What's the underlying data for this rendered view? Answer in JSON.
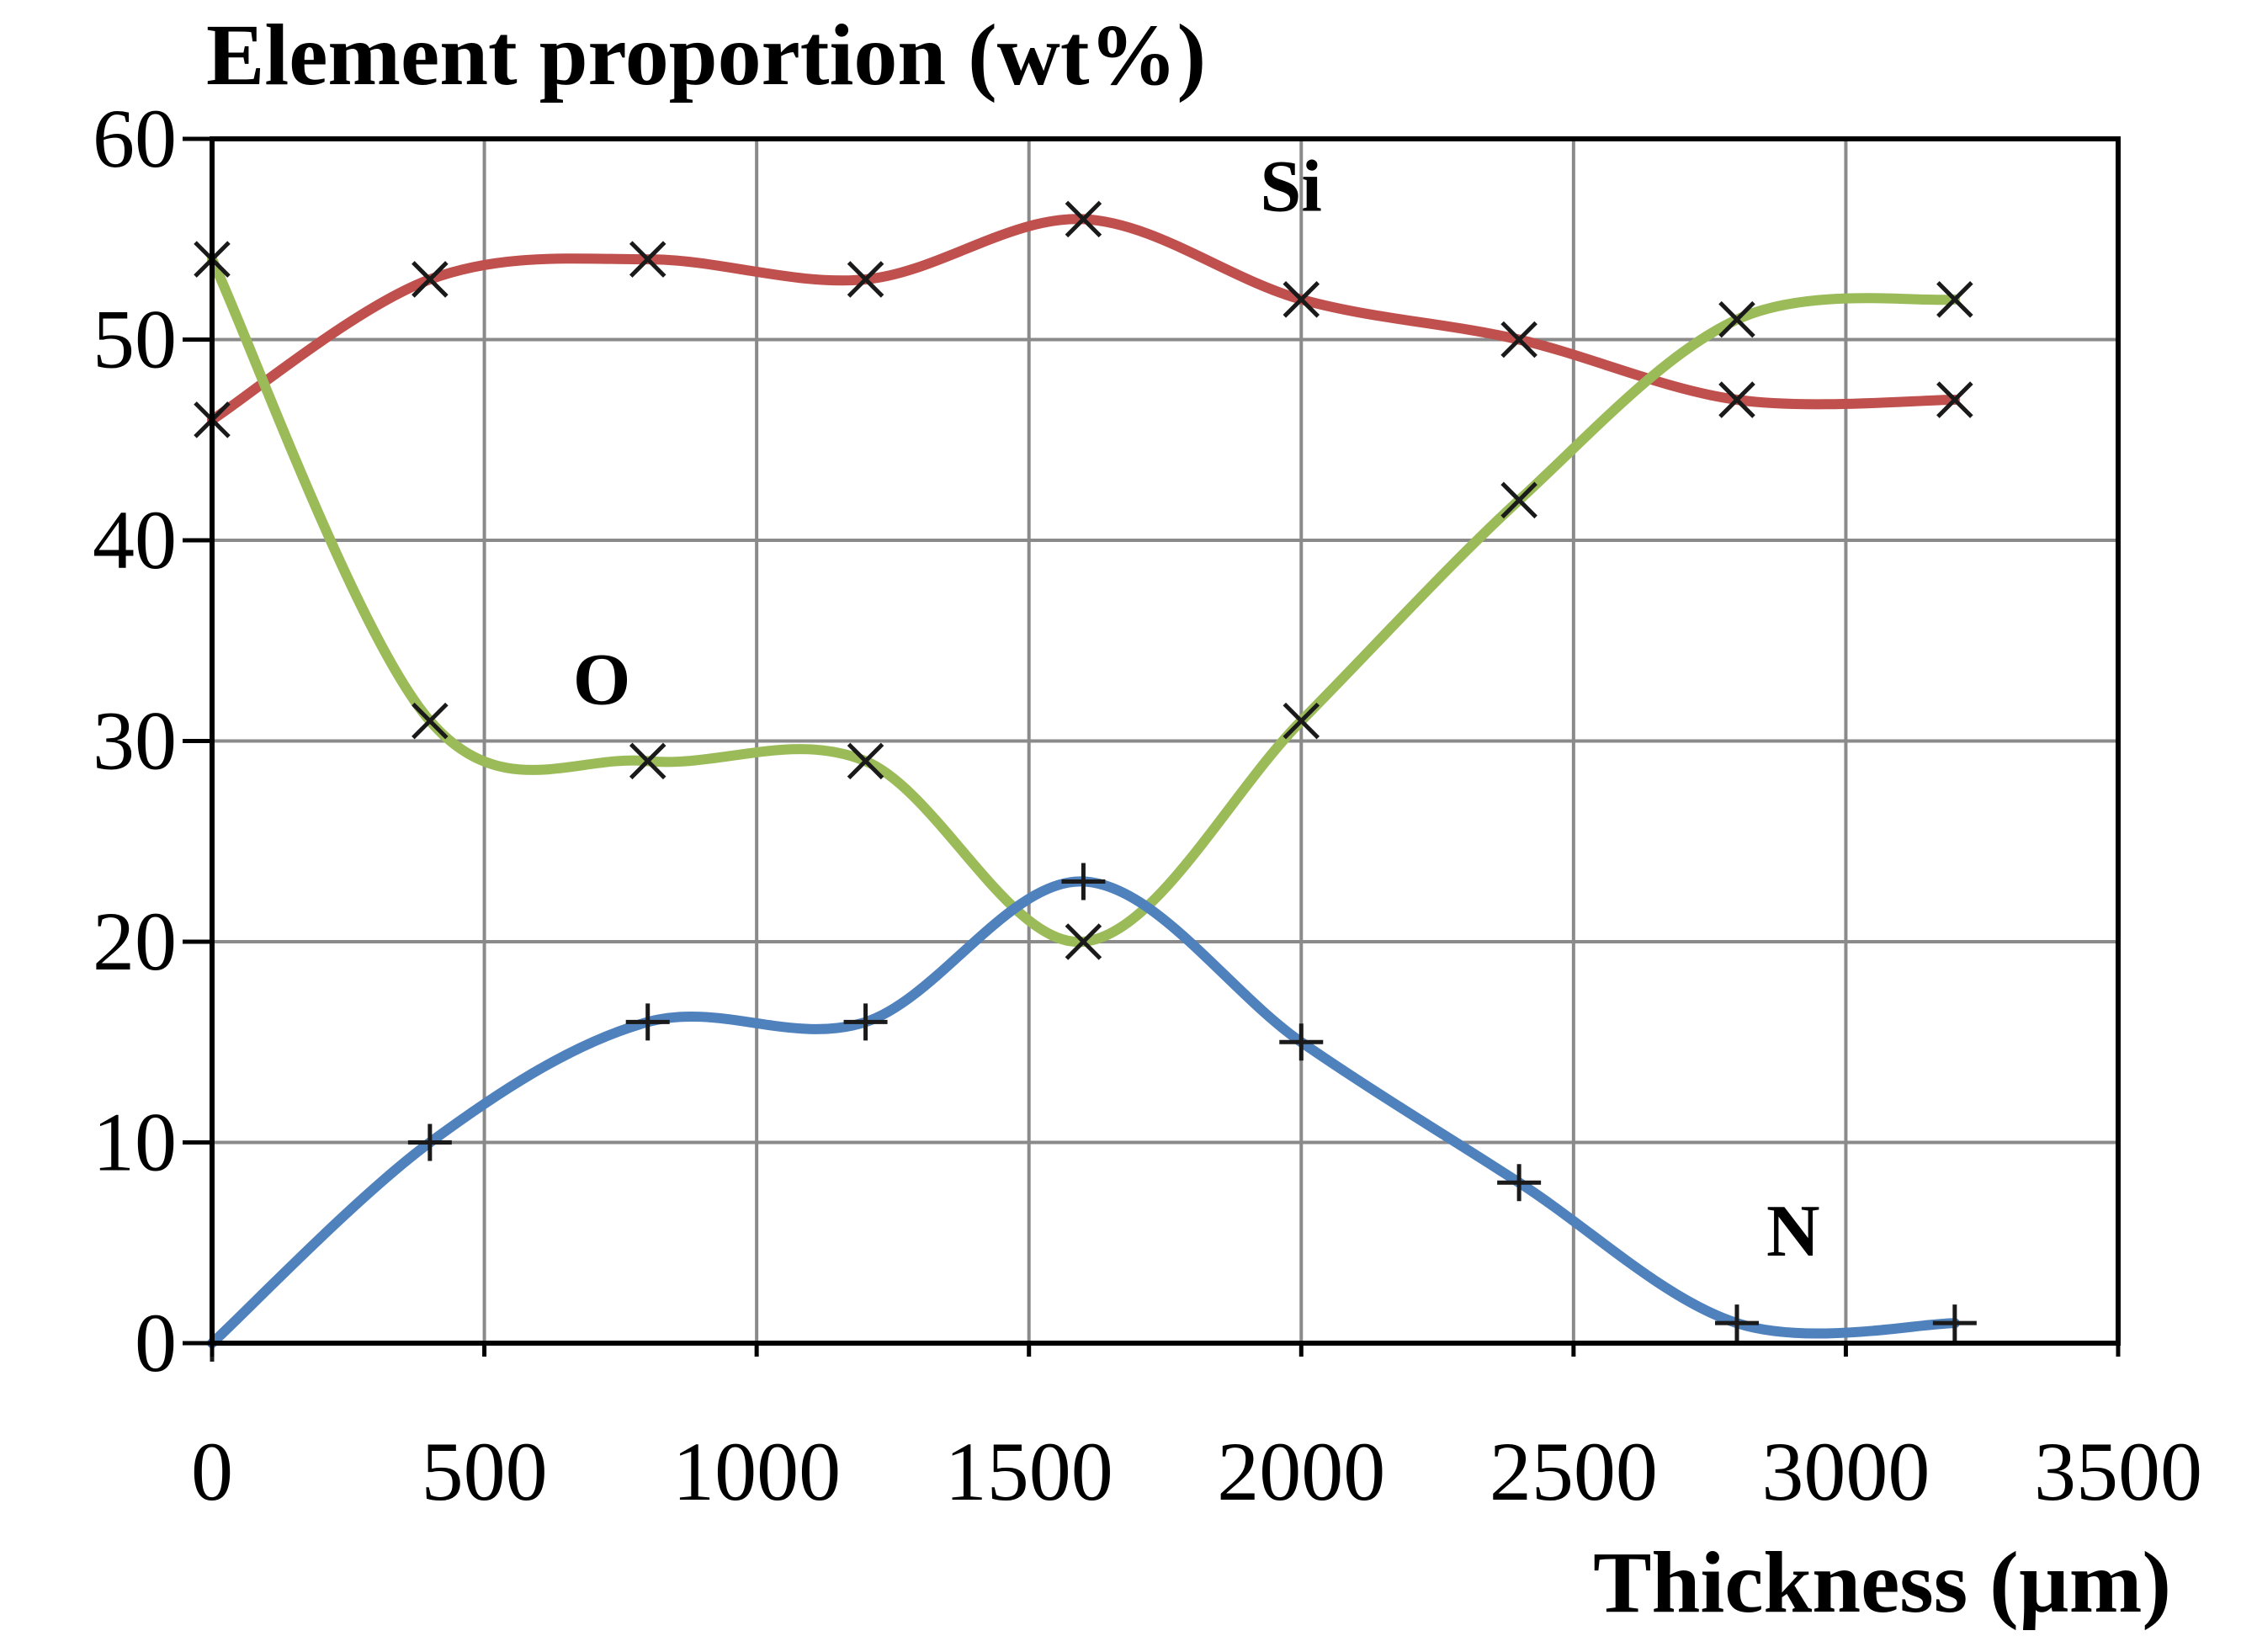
{
  "chart_data": {
    "type": "line",
    "title": "Element proportion (wt%)",
    "xlabel": "Thickness (µm)",
    "ylabel": "Element proportion (wt%)",
    "xlim": [
      0,
      3500
    ],
    "ylim": [
      0,
      60
    ],
    "x_ticks": [
      "0",
      "500",
      "1000",
      "1500",
      "2000",
      "2500",
      "3000",
      "3500"
    ],
    "y_ticks": [
      "0",
      "10",
      "20",
      "30",
      "40",
      "50",
      "60"
    ],
    "grid": true,
    "x": [
      0,
      400,
      800,
      1200,
      1600,
      2000,
      2400,
      2800,
      3200
    ],
    "series": [
      {
        "name": "Si",
        "color": "#c0504d",
        "marker": "x",
        "values": [
          46,
          53,
          54,
          53,
          56,
          52,
          50,
          47,
          47
        ]
      },
      {
        "name": "O",
        "color": "#9bbb59",
        "marker": "x",
        "values": [
          54,
          31,
          29,
          29,
          20,
          31,
          42,
          51,
          52
        ]
      },
      {
        "name": "N",
        "color": "#4f81bd",
        "marker": "+",
        "values": [
          0,
          10,
          16,
          16,
          23,
          15,
          8,
          1,
          1
        ]
      }
    ]
  }
}
